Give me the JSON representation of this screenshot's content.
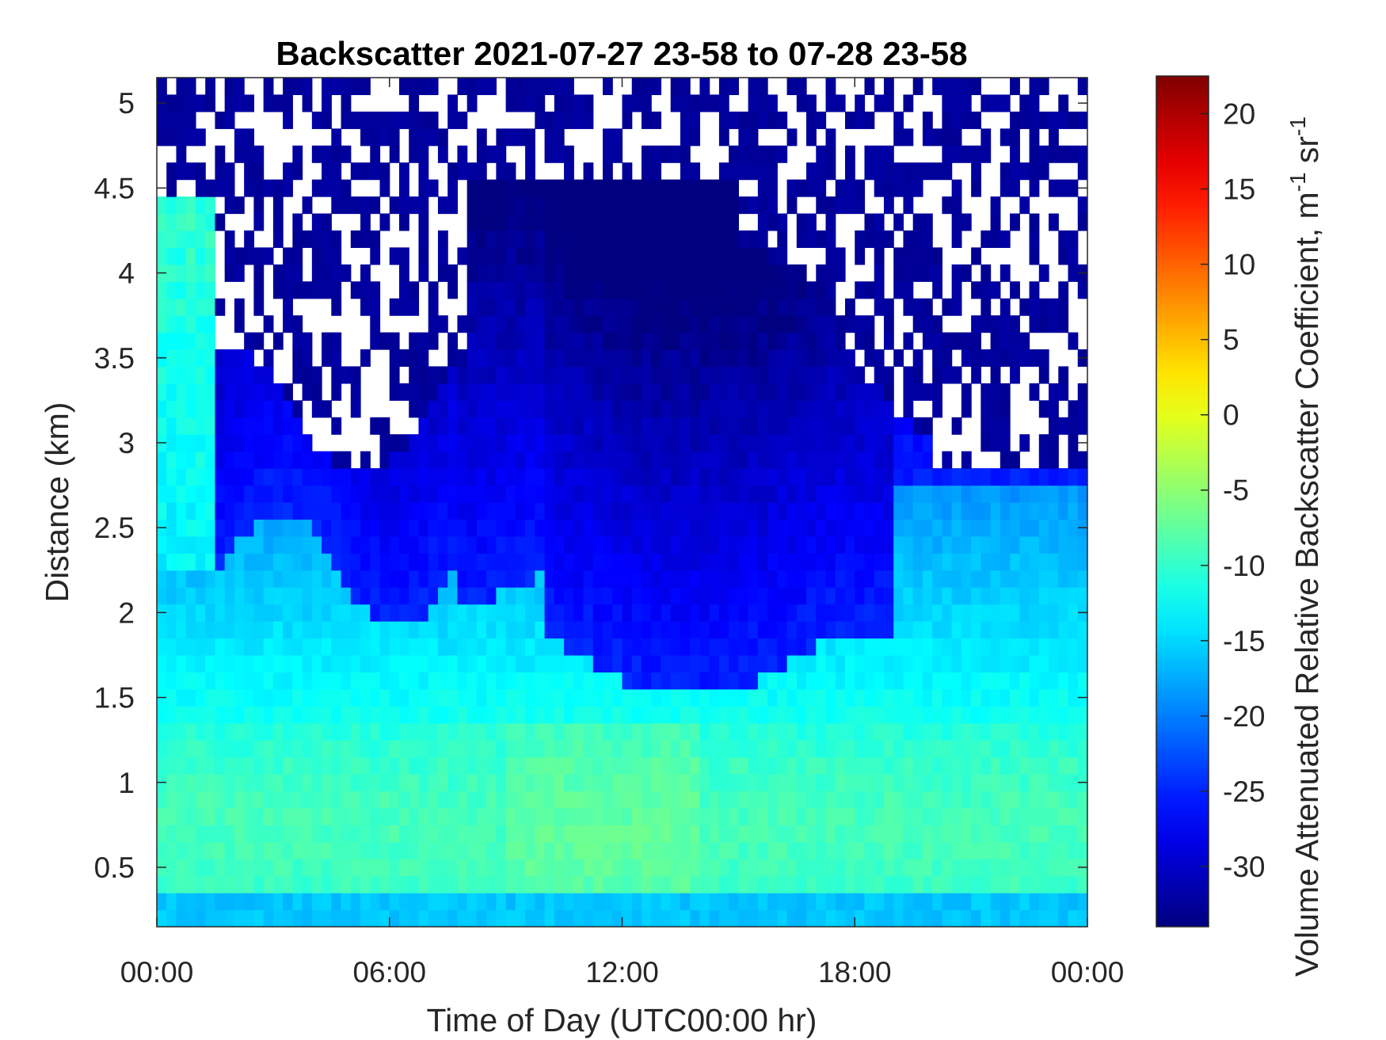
{
  "chart_data": {
    "type": "heatmap",
    "title": "Backscatter 2021-07-27 23-58 to 07-28 23-58",
    "xlabel": "Time of Day (UTC00:00 hr)",
    "ylabel": "Distance (km)",
    "colorbar_label": "Volume Attenuated Relative Backscatter Coefficient, m",
    "colorbar_label_sup1": "-1",
    "colorbar_label_mid": " sr",
    "colorbar_label_sup2": "-1",
    "colormap": "jet",
    "xlim": [
      0,
      24
    ],
    "ylim": [
      0.15,
      5.15
    ],
    "clim": [
      -34,
      22.5
    ],
    "x_ticks": [
      0,
      6,
      12,
      18,
      24
    ],
    "x_tick_labels": [
      "00:00",
      "06:00",
      "12:00",
      "18:00",
      "00:00"
    ],
    "y_ticks": [
      0.5,
      1,
      1.5,
      2,
      2.5,
      3,
      3.5,
      4,
      4.5,
      5
    ],
    "y_tick_labels": [
      "0.5",
      "1",
      "1.5",
      "2",
      "2.5",
      "3",
      "3.5",
      "4",
      "4.5",
      "5"
    ],
    "c_ticks": [
      -30,
      -25,
      -20,
      -15,
      -10,
      -5,
      0,
      5,
      10,
      15,
      20
    ],
    "c_tick_labels": [
      "-30",
      "-25",
      "-20",
      "-15",
      "-10",
      "-5",
      "0",
      "5",
      "10",
      "15",
      "20"
    ],
    "grid": false,
    "time_step_hr": 0.25,
    "range_step_km": 0.1,
    "missing_data_color": "#ffffff"
  }
}
